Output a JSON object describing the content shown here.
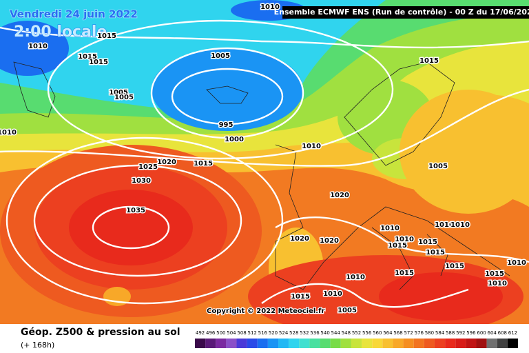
{
  "header": {
    "title": "Vendredi 24 juin 2022",
    "time": "2:00 locale",
    "run": "Ensemble ECMWF ENS  (Run de contrôle)  - 00 Z du 17/06/2022"
  },
  "isobar_labels": [
    1010,
    1015,
    1010,
    1015,
    1015,
    1005,
    1005,
    1005,
    995,
    1000,
    1010,
    1010,
    1025,
    1020,
    1015,
    1030,
    1020,
    1035,
    1015,
    1005,
    1020,
    1020,
    1010,
    1010,
    1015,
    1015,
    1010,
    1010,
    1015,
    1015,
    1010,
    1015,
    1010,
    1005,
    1015,
    1010,
    1010,
    1015
  ],
  "copyright": "Copyright © 2022 Meteociel.fr",
  "legend": {
    "title": "Géop. Z500 & pression au sol",
    "subtitle": "(+ 168h)",
    "values": [
      492,
      496,
      500,
      504,
      508,
      512,
      516,
      520,
      524,
      528,
      532,
      536,
      540,
      544,
      548,
      552,
      556,
      560,
      564,
      568,
      572,
      576,
      580,
      584,
      588,
      592,
      596,
      600,
      604,
      608,
      612
    ],
    "colors": [
      "#3a0a4a",
      "#5a1a78",
      "#7a2aa0",
      "#8a50c8",
      "#4a3ad8",
      "#2a4ae8",
      "#1a6ef0",
      "#1a94f4",
      "#22b8f4",
      "#30d4ee",
      "#40e0d0",
      "#48e0a0",
      "#58dc70",
      "#78dc48",
      "#a0e040",
      "#c8e43c",
      "#e8e43c",
      "#f8d838",
      "#f8c030",
      "#f8a828",
      "#f58e20",
      "#f27420",
      "#ee5a20",
      "#ec4020",
      "#e82a1c",
      "#d81c18",
      "#c01414",
      "#a01010",
      "#707070",
      "#404040",
      "#000000"
    ]
  }
}
